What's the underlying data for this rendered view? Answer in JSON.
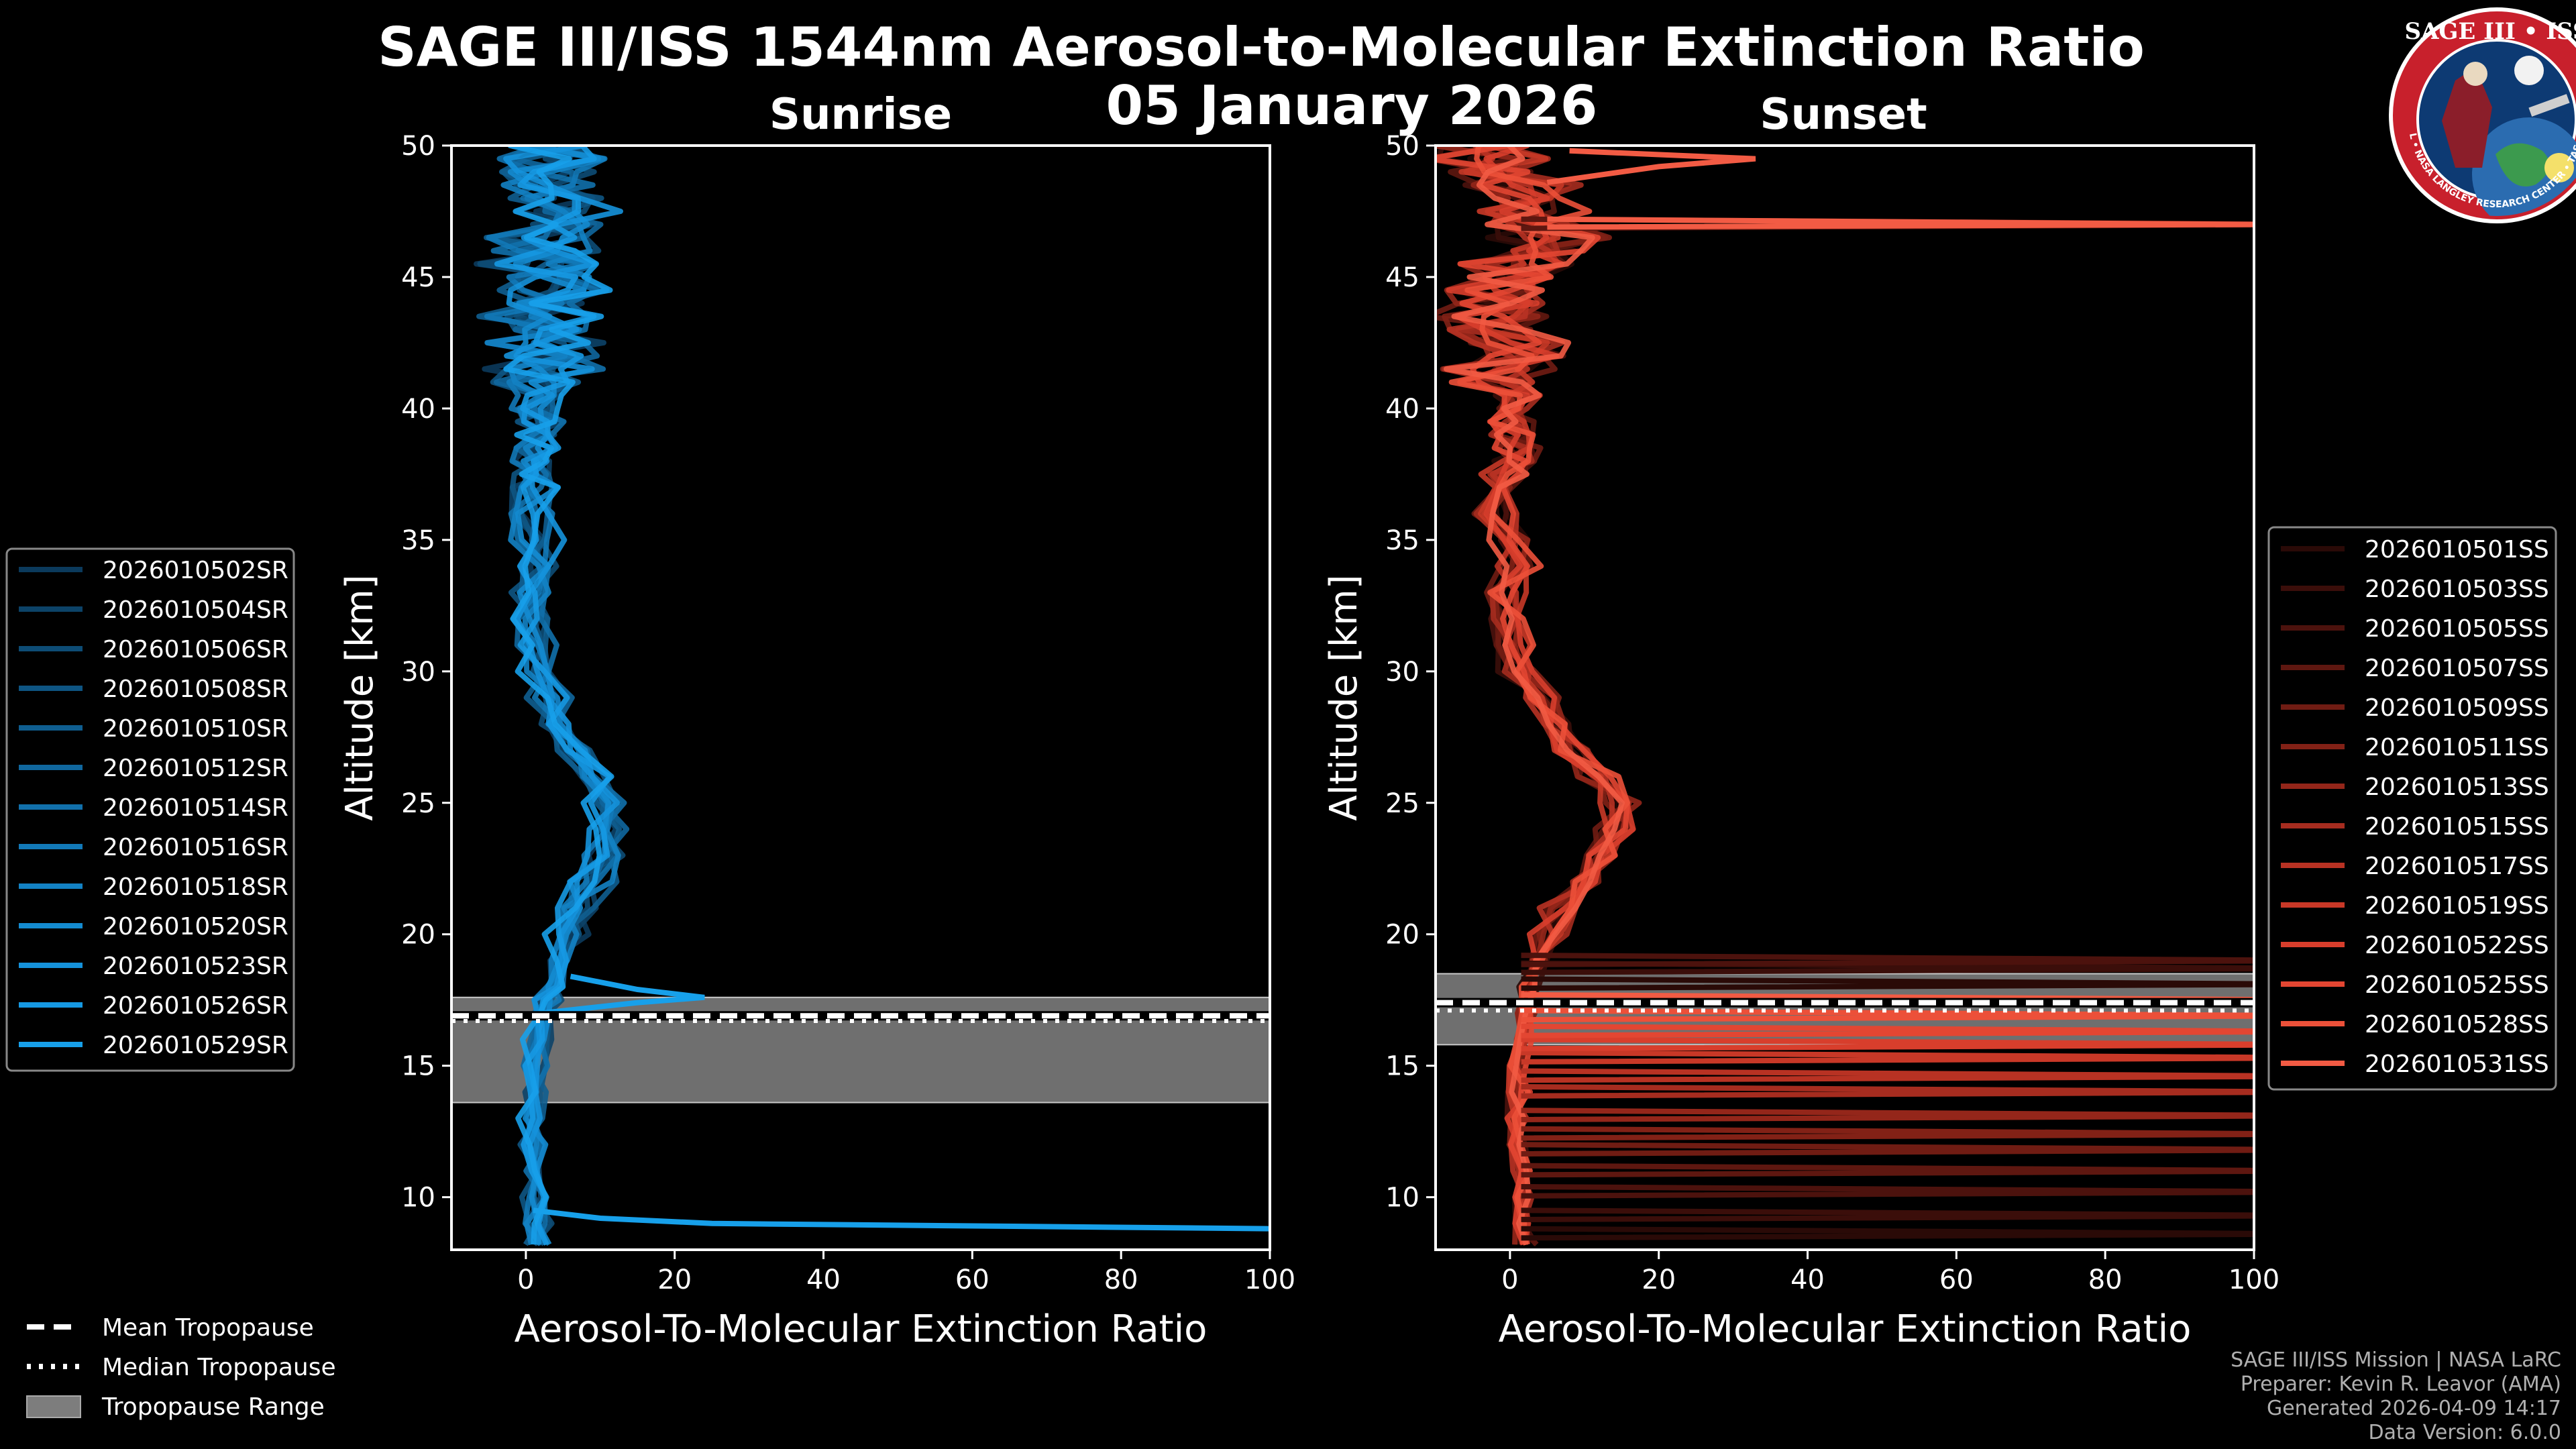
{
  "title_line1": "SAGE III/ISS 1544nm Aerosol-to-Molecular Extinction Ratio",
  "title_line2": "05 January 2026",
  "logo": {
    "top_text": "SAGE III • ISS",
    "ring_text": "BALL • NASA LANGLEY RESEARCH CENTER • TAS • ESA",
    "colors": {
      "ring": "#c8202c",
      "field": "#0d3a73",
      "border": "#ffffff"
    }
  },
  "legend_left": {
    "entries": [
      "2026010502SR",
      "2026010504SR",
      "2026010506SR",
      "2026010508SR",
      "2026010510SR",
      "2026010512SR",
      "2026010514SR",
      "2026010516SR",
      "2026010518SR",
      "2026010520SR",
      "2026010523SR",
      "2026010526SR",
      "2026010529SR"
    ],
    "colors": [
      "#0b3a5c",
      "#0c4368",
      "#0d4c75",
      "#0e5583",
      "#0f5e90",
      "#10679e",
      "#1170ab",
      "#1279b8",
      "#1382c4",
      "#148bd0",
      "#1592db",
      "#1699e3",
      "#17a0ea"
    ]
  },
  "legend_right": {
    "entries": [
      "2026010501SS",
      "2026010503SS",
      "2026010505SS",
      "2026010507SS",
      "2026010509SS",
      "2026010511SS",
      "2026010513SS",
      "2026010515SS",
      "2026010517SS",
      "2026010519SS",
      "2026010522SS",
      "2026010525SS",
      "2026010528SS",
      "2026010531SS"
    ],
    "colors": [
      "#2a0a07",
      "#3b0e0a",
      "#4c120d",
      "#5e1710",
      "#701c13",
      "#822116",
      "#94261a",
      "#a62c1f",
      "#b83223",
      "#c83827",
      "#d83e2c",
      "#e34632",
      "#ec5039",
      "#f25b44"
    ]
  },
  "legend_tropopause": {
    "mean": "Mean Tropopause",
    "median": "Median Tropopause",
    "range": "Tropopause Range"
  },
  "credits": {
    "line1": "SAGE III/ISS Mission | NASA LaRC",
    "line2": "Preparer: Kevin R. Leavor (AMA)",
    "line3": "Generated 2026-04-09 14:17",
    "line4": "Data Version: 6.0.0"
  },
  "chart_data": [
    {
      "type": "line",
      "title": "Sunrise",
      "xlabel": "Aerosol-To-Molecular Extinction Ratio",
      "ylabel": "Altitude [km]",
      "xlim": [
        -10,
        100
      ],
      "ylim": [
        8,
        50
      ],
      "xticks": [
        0,
        20,
        40,
        60,
        80,
        100
      ],
      "yticks": [
        10,
        15,
        20,
        25,
        30,
        35,
        40,
        45,
        50
      ],
      "tropopause": {
        "range": [
          13.6,
          17.6
        ],
        "mean": 16.9,
        "median": 16.7
      },
      "representative_profile": {
        "altitude": [
          8.2,
          9.0,
          10,
          11,
          12,
          13,
          14,
          15,
          16,
          17,
          17.5,
          18,
          19,
          20,
          21,
          22,
          23,
          24,
          25,
          26,
          27,
          28,
          29,
          30,
          31,
          32,
          33,
          34,
          35,
          36,
          37,
          38,
          39,
          40,
          41,
          42,
          43,
          44,
          45,
          46,
          47,
          48,
          49,
          50
        ],
        "ratio": [
          1.5,
          1.5,
          1.2,
          1.0,
          1.0,
          1.0,
          1.2,
          1.0,
          1.5,
          2.0,
          3.0,
          3.5,
          4.0,
          5.5,
          7.5,
          9.0,
          10.5,
          11.5,
          10.5,
          8.5,
          6.5,
          4.5,
          3.0,
          2.0,
          1.5,
          1.0,
          1.0,
          1.5,
          1.5,
          1.2,
          1.2,
          1.5,
          2.0,
          2.0,
          2.5,
          2.5,
          2.0,
          3.0,
          1.5,
          3.0,
          5.0,
          4.0,
          3.0,
          2.0
        ]
      },
      "outliers": [
        {
          "altitude": [
            17.0,
            17.4,
            17.6,
            17.9,
            18.4
          ],
          "ratio": [
            2.0,
            15.0,
            24.0,
            15.0,
            6.0
          ]
        },
        {
          "altitude": [
            9.5,
            9.2,
            9.0,
            8.8
          ],
          "ratio": [
            1.0,
            10.0,
            25.0,
            100.0
          ]
        }
      ]
    },
    {
      "type": "line",
      "title": "Sunset",
      "xlabel": "Aerosol-To-Molecular Extinction Ratio",
      "ylabel": "Altitude [km]",
      "xlim": [
        -10,
        100
      ],
      "ylim": [
        8,
        50
      ],
      "xticks": [
        0,
        20,
        40,
        60,
        80,
        100
      ],
      "yticks": [
        10,
        15,
        20,
        25,
        30,
        35,
        40,
        45,
        50
      ],
      "tropopause": {
        "range": [
          15.8,
          18.5
        ],
        "mean": 17.4,
        "median": 17.1
      },
      "representative_profile": {
        "altitude": [
          8.2,
          9,
          10,
          11,
          12,
          13,
          14,
          15,
          16,
          17,
          18,
          19,
          20,
          21,
          22,
          23,
          24,
          25,
          26,
          27,
          28,
          29,
          30,
          31,
          32,
          33,
          34,
          35,
          36,
          37,
          38,
          39,
          40,
          41,
          42,
          43,
          44,
          45,
          46,
          47,
          48,
          49,
          50
        ],
        "ratio": [
          2.0,
          1.5,
          1.5,
          1.5,
          1.0,
          1.0,
          1.0,
          1.0,
          1.5,
          2.0,
          2.5,
          3.5,
          5.0,
          7.0,
          9.5,
          12.0,
          14.0,
          15.0,
          12.0,
          8.0,
          6.0,
          4.0,
          1.5,
          0.5,
          0.0,
          -1.0,
          1.0,
          0.0,
          -2.0,
          -1.0,
          1.0,
          0.0,
          1.0,
          -2.0,
          1.0,
          -3.0,
          -2.0,
          0.0,
          5.0,
          3.0,
          2.0,
          -3.0,
          -4.0
        ]
      },
      "horizontal_spikes_altitudes": [
        8.6,
        9.3,
        10.2,
        11.0,
        11.8,
        12.4,
        13.1,
        14.0,
        14.6,
        15.3,
        15.8,
        16.3,
        16.9,
        17.5,
        18.1,
        18.7,
        19.0,
        47.0
      ],
      "outliers": [
        {
          "altitude": [
            48.6,
            49.2,
            49.5,
            49.8
          ],
          "ratio": [
            5.0,
            20.0,
            33.0,
            8.0
          ]
        },
        {
          "altitude": [
            47.2,
            47.0,
            46.9
          ],
          "ratio": [
            5.0,
            100.0,
            5.0
          ]
        }
      ]
    }
  ]
}
